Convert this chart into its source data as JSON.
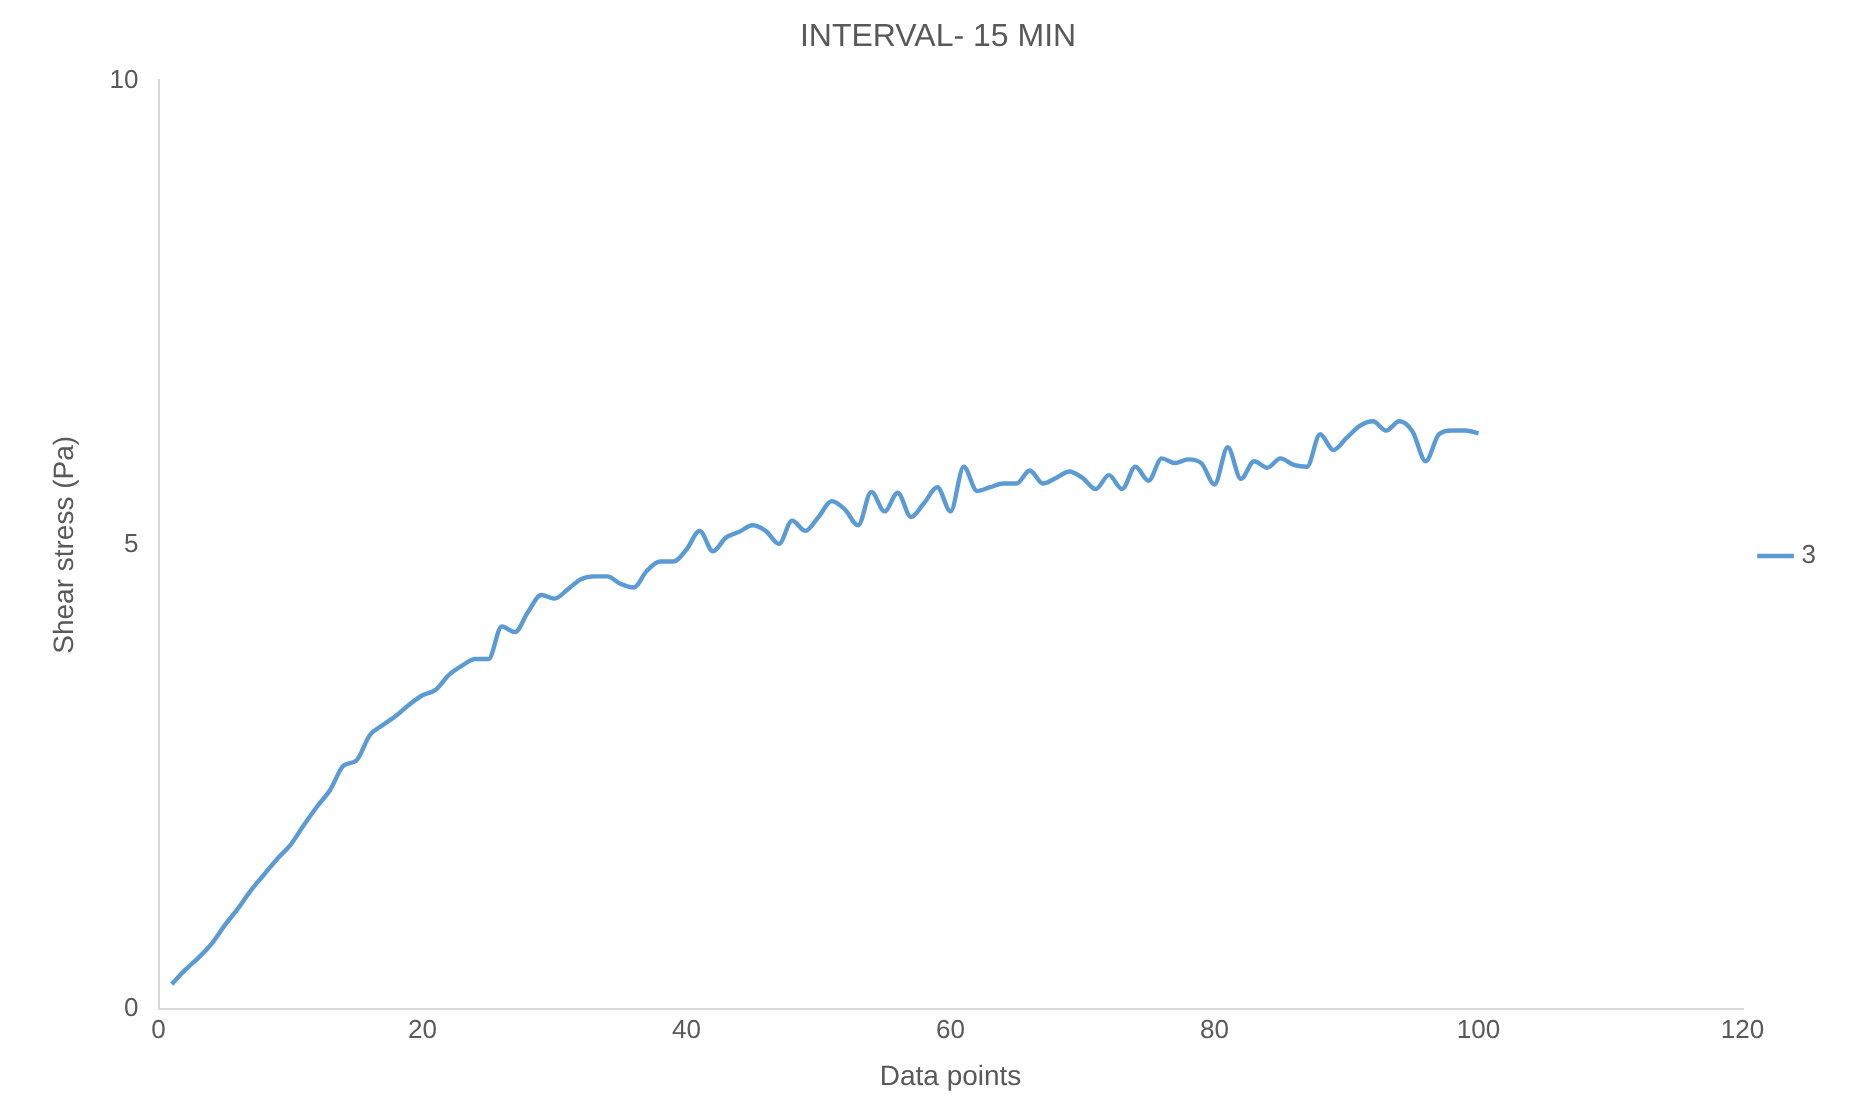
{
  "chart_data": {
    "type": "line",
    "title": "INTERVAL- 15 MIN",
    "xlabel": "Data points",
    "ylabel": "Shear stress (Pa)",
    "x": [
      1,
      2,
      3,
      4,
      5,
      6,
      7,
      8,
      9,
      10,
      11,
      12,
      13,
      14,
      15,
      16,
      17,
      18,
      19,
      20,
      21,
      22,
      23,
      24,
      25,
      26,
      27,
      28,
      29,
      30,
      31,
      32,
      33,
      34,
      35,
      36,
      37,
      38,
      39,
      40,
      41,
      42,
      43,
      44,
      45,
      46,
      47,
      48,
      49,
      50,
      51,
      52,
      53,
      54,
      55,
      56,
      57,
      58,
      59,
      60,
      61,
      62,
      63,
      64,
      65,
      66,
      67,
      68,
      69,
      70,
      71,
      72,
      73,
      74,
      75,
      76,
      77,
      78,
      79,
      80,
      81,
      82,
      83,
      84,
      85,
      86,
      87,
      88,
      89,
      90,
      91,
      92,
      93,
      94,
      95,
      96,
      97,
      98,
      99,
      100
    ],
    "series": [
      {
        "name": "3",
        "color": "#5b9bd5",
        "values": [
          0.27,
          0.42,
          0.55,
          0.7,
          0.9,
          1.08,
          1.28,
          1.45,
          1.62,
          1.77,
          1.98,
          2.18,
          2.36,
          2.62,
          2.68,
          2.95,
          3.06,
          3.16,
          3.28,
          3.38,
          3.44,
          3.6,
          3.7,
          3.77,
          3.77,
          4.12,
          4.06,
          4.28,
          4.46,
          4.42,
          4.52,
          4.63,
          4.66,
          4.66,
          4.58,
          4.54,
          4.72,
          4.82,
          4.82,
          4.95,
          5.15,
          4.93,
          5.08,
          5.14,
          5.21,
          5.15,
          5.01,
          5.26,
          5.15,
          5.3,
          5.47,
          5.38,
          5.21,
          5.57,
          5.36,
          5.56,
          5.3,
          5.45,
          5.62,
          5.36,
          5.84,
          5.58,
          5.62,
          5.66,
          5.66,
          5.8,
          5.66,
          5.72,
          5.79,
          5.72,
          5.6,
          5.75,
          5.6,
          5.84,
          5.69,
          5.93,
          5.88,
          5.92,
          5.88,
          5.65,
          6.05,
          5.71,
          5.9,
          5.83,
          5.93,
          5.86,
          5.84,
          6.19,
          6.02,
          6.15,
          6.28,
          6.33,
          6.23,
          6.33,
          6.22,
          5.9,
          6.19,
          6.23,
          6.23,
          6.2
        ]
      }
    ],
    "xlim": [
      0,
      120
    ],
    "xticks": [
      0,
      20,
      40,
      60,
      80,
      100,
      120
    ],
    "ylim": [
      0,
      10
    ],
    "yticks": [
      0,
      5,
      10
    ],
    "grid": false,
    "legend": "right",
    "marker": "none",
    "line_style": "solid"
  }
}
